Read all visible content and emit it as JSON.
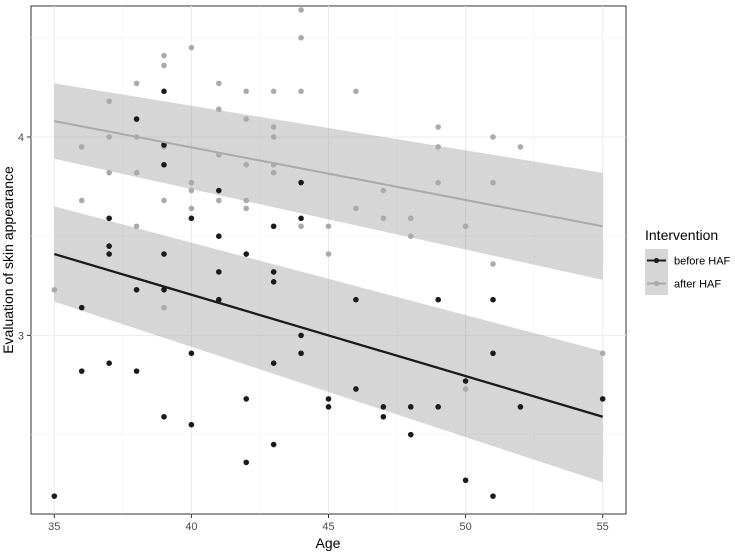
{
  "chart_data": {
    "type": "scatter",
    "title": "",
    "xlabel": "Age",
    "ylabel": "Evaluation of skin appearance",
    "xlim": [
      34.15,
      55.85
    ],
    "ylim": [
      2.1,
      4.66
    ],
    "x_ticks": [
      35,
      40,
      45,
      50,
      55
    ],
    "x_tick_labels": [
      "35",
      "40",
      "45",
      "50",
      "55"
    ],
    "y_ticks": [
      3,
      4
    ],
    "y_tick_labels": [
      "3",
      "4"
    ],
    "grid": true,
    "legend": {
      "title": "Intervention",
      "placement": "right"
    },
    "series": [
      {
        "name": "before HAF",
        "color": "#1a1a1a",
        "points": [
          [
            35,
            2.19
          ],
          [
            36,
            3.14
          ],
          [
            36,
            2.82
          ],
          [
            37,
            3.59
          ],
          [
            37,
            3.45
          ],
          [
            37,
            3.41
          ],
          [
            37,
            2.86
          ],
          [
            38,
            4.09
          ],
          [
            38,
            3.23
          ],
          [
            38,
            2.82
          ],
          [
            39,
            4.23
          ],
          [
            39,
            3.96
          ],
          [
            39,
            3.86
          ],
          [
            39,
            3.41
          ],
          [
            39,
            3.23
          ],
          [
            39,
            2.59
          ],
          [
            40,
            3.59
          ],
          [
            40,
            2.91
          ],
          [
            40,
            2.55
          ],
          [
            41,
            3.73
          ],
          [
            41,
            3.5
          ],
          [
            41,
            3.32
          ],
          [
            41,
            3.18
          ],
          [
            42,
            3.41
          ],
          [
            42,
            2.68
          ],
          [
            42,
            2.36
          ],
          [
            43,
            3.55
          ],
          [
            43,
            3.32
          ],
          [
            43,
            3.27
          ],
          [
            43,
            2.86
          ],
          [
            43,
            2.45
          ],
          [
            44,
            3.77
          ],
          [
            44,
            3.59
          ],
          [
            44,
            3.0
          ],
          [
            44,
            2.91
          ],
          [
            45,
            2.68
          ],
          [
            45,
            2.64
          ],
          [
            46,
            3.18
          ],
          [
            46,
            2.73
          ],
          [
            47,
            2.64
          ],
          [
            47,
            2.59
          ],
          [
            48,
            2.64
          ],
          [
            48,
            2.5
          ],
          [
            49,
            3.18
          ],
          [
            49,
            2.64
          ],
          [
            50,
            2.77
          ],
          [
            50,
            2.27
          ],
          [
            51,
            3.18
          ],
          [
            51,
            2.91
          ],
          [
            51,
            2.19
          ],
          [
            52,
            2.64
          ],
          [
            55,
            2.68
          ]
        ],
        "trend": {
          "x": [
            35,
            55
          ],
          "y": [
            3.41,
            2.59
          ],
          "ci_lower": [
            3.17,
            2.26
          ],
          "ci_upper": [
            3.65,
            2.92
          ]
        }
      },
      {
        "name": "after HAF",
        "color": "#aaaaaa",
        "points": [
          [
            35,
            3.23
          ],
          [
            36,
            3.95
          ],
          [
            36,
            3.68
          ],
          [
            37,
            4.18
          ],
          [
            37,
            4.0
          ],
          [
            37,
            3.82
          ],
          [
            38,
            4.27
          ],
          [
            38,
            4.0
          ],
          [
            38,
            3.82
          ],
          [
            38,
            3.55
          ],
          [
            39,
            4.41
          ],
          [
            39,
            4.36
          ],
          [
            39,
            3.95
          ],
          [
            39,
            3.68
          ],
          [
            39,
            3.14
          ],
          [
            40,
            4.45
          ],
          [
            40,
            3.77
          ],
          [
            40,
            3.73
          ],
          [
            40,
            3.64
          ],
          [
            41,
            4.27
          ],
          [
            41,
            4.14
          ],
          [
            41,
            3.91
          ],
          [
            41,
            3.68
          ],
          [
            42,
            4.23
          ],
          [
            42,
            4.09
          ],
          [
            42,
            3.86
          ],
          [
            42,
            3.68
          ],
          [
            42,
            3.64
          ],
          [
            43,
            4.23
          ],
          [
            43,
            4.05
          ],
          [
            43,
            4.0
          ],
          [
            43,
            3.86
          ],
          [
            43,
            3.82
          ],
          [
            44,
            4.64
          ],
          [
            44,
            4.5
          ],
          [
            44,
            4.23
          ],
          [
            44,
            3.55
          ],
          [
            45,
            3.55
          ],
          [
            45,
            3.41
          ],
          [
            46,
            4.23
          ],
          [
            46,
            3.64
          ],
          [
            47,
            3.73
          ],
          [
            47,
            3.59
          ],
          [
            48,
            3.59
          ],
          [
            48,
            3.5
          ],
          [
            49,
            4.05
          ],
          [
            49,
            3.95
          ],
          [
            49,
            3.77
          ],
          [
            50,
            3.55
          ],
          [
            50,
            2.73
          ],
          [
            51,
            4.0
          ],
          [
            51,
            3.77
          ],
          [
            51,
            3.36
          ],
          [
            52,
            3.95
          ],
          [
            55,
            2.91
          ]
        ],
        "trend": {
          "x": [
            35,
            55
          ],
          "y": [
            4.08,
            3.55
          ],
          "ci_lower": [
            3.89,
            3.28
          ],
          "ci_upper": [
            4.27,
            3.82
          ]
        }
      }
    ]
  }
}
